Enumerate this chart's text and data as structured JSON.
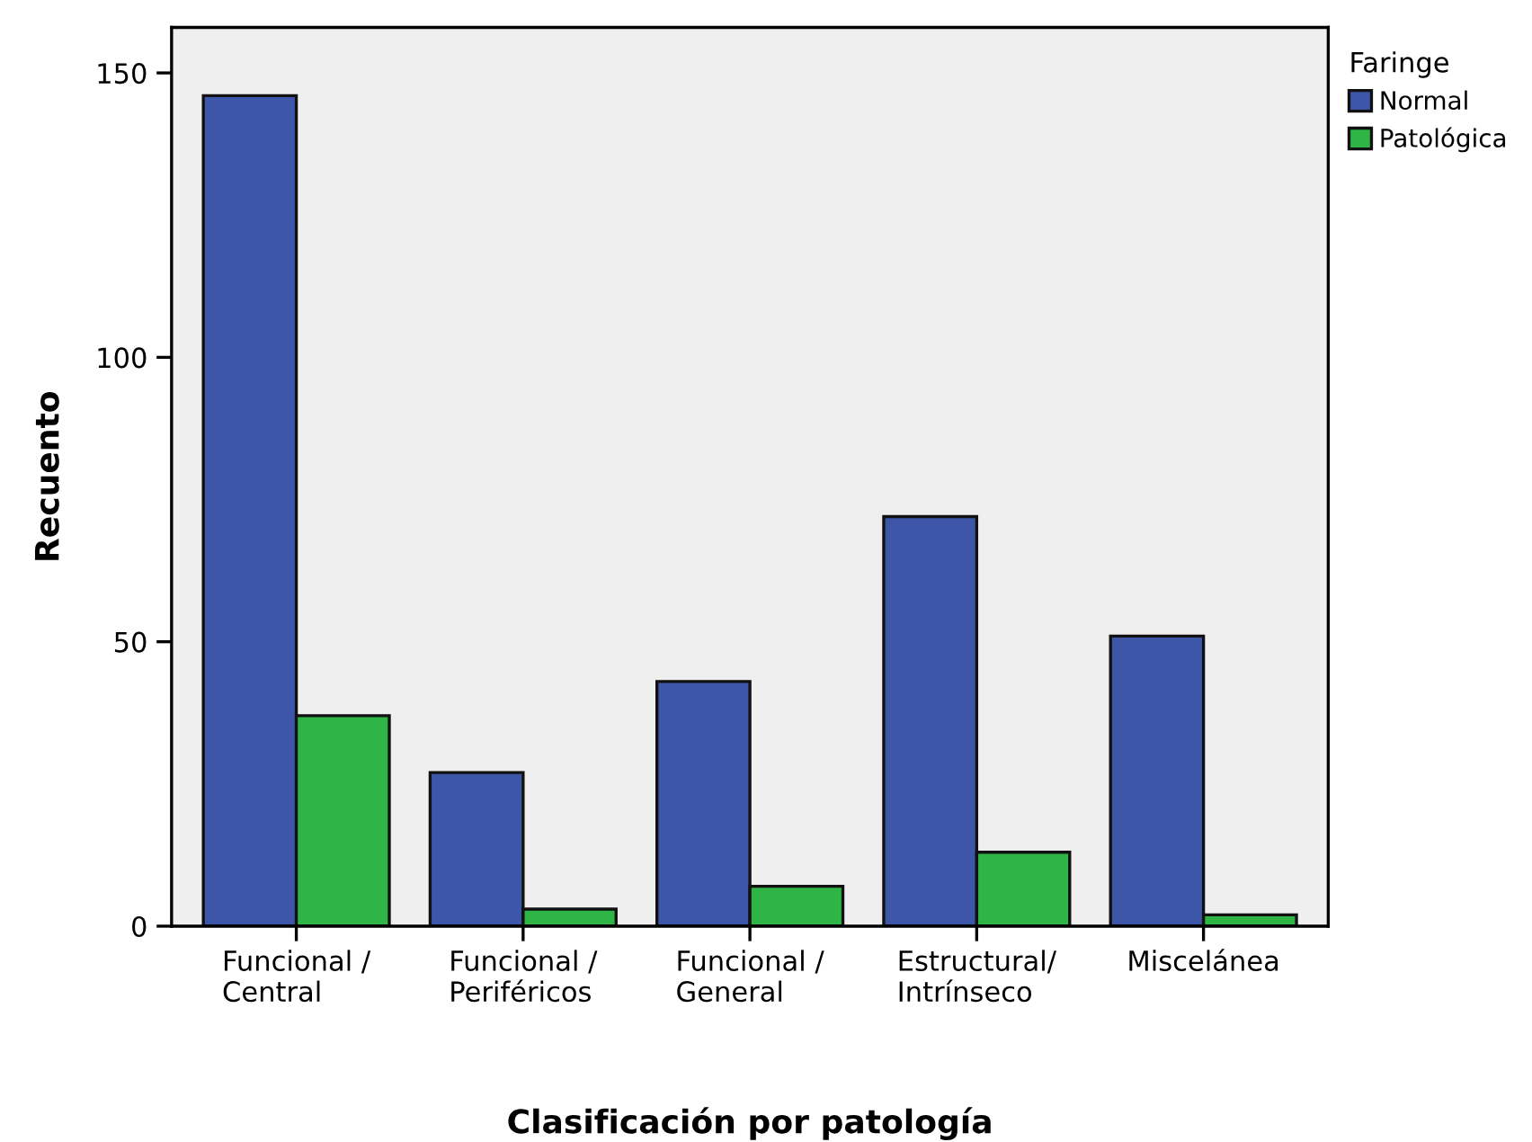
{
  "chart_data": {
    "type": "bar",
    "xlabel": "Clasificación por patología",
    "ylabel": "Recuento",
    "legend_title": "Faringe",
    "categories": [
      "Funcional /\nCentral",
      "Funcional /\nPeriféricos",
      "Funcional /\nGeneral",
      "Estructural/\nIntrínseco",
      "Miscelánea"
    ],
    "series": [
      {
        "name": "Normal",
        "color": "#3d56a8",
        "values": [
          146,
          27,
          43,
          72,
          51
        ]
      },
      {
        "name": "Patológica",
        "color": "#2eb545",
        "values": [
          37,
          3,
          7,
          13,
          2
        ]
      }
    ],
    "ylim": [
      0,
      158
    ],
    "yticks": [
      0,
      50,
      100,
      150
    ],
    "grid": false,
    "legend": "top right"
  }
}
